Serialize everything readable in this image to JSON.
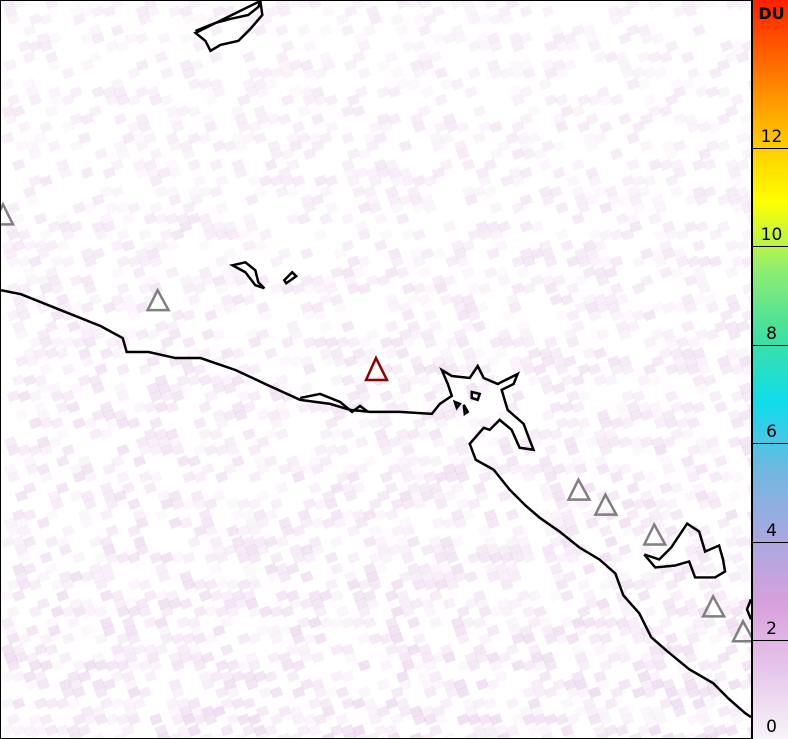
{
  "colorbar": {
    "unit": "DU",
    "min": 0,
    "max": 15,
    "ticks": [
      "0",
      "2",
      "4",
      "6",
      "8",
      "10",
      "12"
    ],
    "colors": [
      "#f8f4fa",
      "#e6c8ea",
      "#d8a0dc",
      "#a8a8e0",
      "#70b8e0",
      "#10dcec",
      "#40e0a0",
      "#90ee70",
      "#ffff00",
      "#ffc000",
      "#ff7000",
      "#ff2000"
    ]
  },
  "map": {
    "background_value_range_DU": [
      0,
      2
    ],
    "coastline_color": "#000000",
    "volcano_markers": [
      {
        "status": "active",
        "color": "#8b0000"
      },
      {
        "status": "inactive",
        "color": "#808080"
      }
    ]
  }
}
